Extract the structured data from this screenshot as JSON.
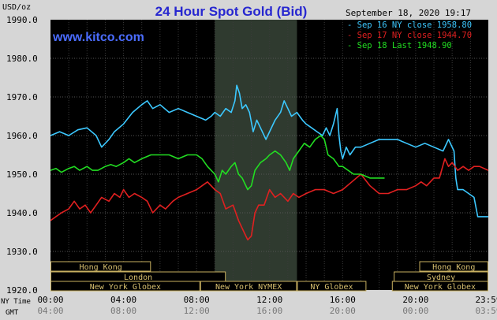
{
  "chart_data": {
    "type": "line",
    "title": "24 Hour Spot Gold (Bid)",
    "watermark": "www.kitco.com",
    "timestamp": "September 18, 2020 19:17",
    "ylabel": "USD/oz",
    "ylim": [
      1920,
      1990
    ],
    "yticks": [
      "1920.0",
      "1930.0",
      "1940.0",
      "1950.0",
      "1960.0",
      "1970.0",
      "1980.0",
      "1990.0"
    ],
    "x_row_labels": {
      "ny": "NY Time",
      "gmt": "GMT"
    },
    "xticks_ny": [
      "00:00",
      "04:00",
      "08:00",
      "12:00",
      "16:00",
      "20:00",
      "23:59"
    ],
    "xticks_gmt": [
      "04:00",
      "08:00",
      "12:00",
      "16:00",
      "20:00",
      "00:00",
      "03:59"
    ],
    "xtick_hours": [
      0,
      4,
      8,
      12,
      16,
      20,
      23.98
    ],
    "highlight_hours": [
      9,
      13.5
    ],
    "grid": true,
    "legend": [
      {
        "text": "Sep 16 NY close 1958.80",
        "color": "#3cc8ff"
      },
      {
        "text": "Sep 17 NY close 1944.70",
        "color": "#e02020"
      },
      {
        "text": "Sep 18 Last 1948.90",
        "color": "#22dd22"
      }
    ],
    "series": [
      {
        "color": "#3cc8ff",
        "points": [
          [
            0,
            1960
          ],
          [
            0.5,
            1961
          ],
          [
            1,
            1960
          ],
          [
            1.5,
            1961.5
          ],
          [
            2,
            1962
          ],
          [
            2.5,
            1960
          ],
          [
            2.8,
            1957
          ],
          [
            3.2,
            1959
          ],
          [
            3.5,
            1961
          ],
          [
            4,
            1963
          ],
          [
            4.5,
            1966
          ],
          [
            5,
            1968
          ],
          [
            5.3,
            1969
          ],
          [
            5.6,
            1967
          ],
          [
            6,
            1968
          ],
          [
            6.5,
            1966
          ],
          [
            7,
            1967
          ],
          [
            7.5,
            1966
          ],
          [
            8,
            1965
          ],
          [
            8.5,
            1964
          ],
          [
            8.8,
            1965
          ],
          [
            9,
            1966
          ],
          [
            9.3,
            1965
          ],
          [
            9.6,
            1967
          ],
          [
            9.9,
            1966
          ],
          [
            10.1,
            1969
          ],
          [
            10.2,
            1973
          ],
          [
            10.35,
            1971
          ],
          [
            10.5,
            1967
          ],
          [
            10.7,
            1968
          ],
          [
            10.9,
            1966
          ],
          [
            11.1,
            1961
          ],
          [
            11.3,
            1964
          ],
          [
            11.5,
            1962
          ],
          [
            11.8,
            1959
          ],
          [
            12,
            1961
          ],
          [
            12.3,
            1964
          ],
          [
            12.6,
            1966
          ],
          [
            12.8,
            1969
          ],
          [
            13,
            1967
          ],
          [
            13.2,
            1965
          ],
          [
            13.5,
            1966
          ],
          [
            13.8,
            1964
          ],
          [
            14,
            1963
          ],
          [
            14.3,
            1962
          ],
          [
            14.6,
            1961
          ],
          [
            14.9,
            1960
          ],
          [
            15.1,
            1962
          ],
          [
            15.3,
            1960
          ],
          [
            15.5,
            1963
          ],
          [
            15.7,
            1967
          ],
          [
            15.8,
            1960
          ],
          [
            15.9,
            1956
          ],
          [
            16,
            1954
          ],
          [
            16.2,
            1957
          ],
          [
            16.4,
            1955
          ],
          [
            16.7,
            1957
          ],
          [
            17,
            1957
          ],
          [
            17.5,
            1958
          ],
          [
            18,
            1959
          ],
          [
            18.5,
            1959
          ],
          [
            19,
            1959
          ],
          [
            19.5,
            1958
          ],
          [
            20,
            1957
          ],
          [
            20.5,
            1958
          ],
          [
            21,
            1957
          ],
          [
            21.5,
            1956
          ],
          [
            21.8,
            1959
          ],
          [
            22.1,
            1956
          ],
          [
            22.2,
            1949
          ],
          [
            22.3,
            1946
          ],
          [
            22.6,
            1946
          ],
          [
            22.9,
            1945
          ],
          [
            23.2,
            1944
          ],
          [
            23.4,
            1939
          ],
          [
            23.7,
            1939
          ],
          [
            23.98,
            1939
          ]
        ]
      },
      {
        "color": "#e02020",
        "points": [
          [
            0,
            1938
          ],
          [
            0.3,
            1939
          ],
          [
            0.6,
            1940
          ],
          [
            1,
            1941
          ],
          [
            1.3,
            1943
          ],
          [
            1.6,
            1941
          ],
          [
            1.9,
            1942
          ],
          [
            2.2,
            1940
          ],
          [
            2.5,
            1942
          ],
          [
            2.8,
            1944
          ],
          [
            3.2,
            1943
          ],
          [
            3.5,
            1945
          ],
          [
            3.8,
            1944
          ],
          [
            4,
            1946
          ],
          [
            4.3,
            1944
          ],
          [
            4.6,
            1945
          ],
          [
            5,
            1944
          ],
          [
            5.3,
            1943
          ],
          [
            5.6,
            1940
          ],
          [
            6,
            1942
          ],
          [
            6.3,
            1941
          ],
          [
            6.7,
            1943
          ],
          [
            7,
            1944
          ],
          [
            7.5,
            1945
          ],
          [
            8,
            1946
          ],
          [
            8.3,
            1947
          ],
          [
            8.6,
            1948
          ],
          [
            9,
            1946
          ],
          [
            9.3,
            1945
          ],
          [
            9.6,
            1941
          ],
          [
            10,
            1942
          ],
          [
            10.3,
            1938
          ],
          [
            10.6,
            1935
          ],
          [
            10.8,
            1933
          ],
          [
            11,
            1934
          ],
          [
            11.2,
            1940
          ],
          [
            11.4,
            1942
          ],
          [
            11.7,
            1942
          ],
          [
            12,
            1946
          ],
          [
            12.3,
            1944
          ],
          [
            12.6,
            1945
          ],
          [
            13,
            1943
          ],
          [
            13.3,
            1945
          ],
          [
            13.6,
            1944
          ],
          [
            14,
            1945
          ],
          [
            14.5,
            1946
          ],
          [
            15,
            1946
          ],
          [
            15.5,
            1945
          ],
          [
            16,
            1946
          ],
          [
            16.5,
            1948
          ],
          [
            17,
            1950
          ],
          [
            17.5,
            1947
          ],
          [
            18,
            1945
          ],
          [
            18.5,
            1945
          ],
          [
            19,
            1946
          ],
          [
            19.5,
            1946
          ],
          [
            20,
            1947
          ],
          [
            20.3,
            1948
          ],
          [
            20.6,
            1947
          ],
          [
            21,
            1949
          ],
          [
            21.3,
            1949
          ],
          [
            21.6,
            1954
          ],
          [
            21.8,
            1952
          ],
          [
            22,
            1953
          ],
          [
            22.3,
            1951
          ],
          [
            22.6,
            1952
          ],
          [
            22.9,
            1951
          ],
          [
            23.2,
            1952
          ],
          [
            23.5,
            1952
          ],
          [
            23.98,
            1951
          ]
        ]
      },
      {
        "color": "#22dd22",
        "points": [
          [
            0,
            1951
          ],
          [
            0.3,
            1951.5
          ],
          [
            0.6,
            1950.5
          ],
          [
            1,
            1951.5
          ],
          [
            1.3,
            1952
          ],
          [
            1.6,
            1951
          ],
          [
            2,
            1952
          ],
          [
            2.3,
            1951
          ],
          [
            2.6,
            1951
          ],
          [
            3,
            1952
          ],
          [
            3.3,
            1952.5
          ],
          [
            3.6,
            1952
          ],
          [
            4,
            1953
          ],
          [
            4.3,
            1954
          ],
          [
            4.6,
            1953
          ],
          [
            5,
            1954
          ],
          [
            5.5,
            1955
          ],
          [
            6,
            1955
          ],
          [
            6.5,
            1955
          ],
          [
            7,
            1954
          ],
          [
            7.5,
            1955
          ],
          [
            8,
            1955
          ],
          [
            8.3,
            1954
          ],
          [
            8.6,
            1952
          ],
          [
            9,
            1950
          ],
          [
            9.2,
            1948
          ],
          [
            9.4,
            1951
          ],
          [
            9.6,
            1950
          ],
          [
            9.9,
            1952
          ],
          [
            10.1,
            1953
          ],
          [
            10.3,
            1950
          ],
          [
            10.5,
            1949
          ],
          [
            10.8,
            1946
          ],
          [
            11,
            1947
          ],
          [
            11.2,
            1951
          ],
          [
            11.5,
            1953
          ],
          [
            11.8,
            1954
          ],
          [
            12,
            1955
          ],
          [
            12.3,
            1956
          ],
          [
            12.6,
            1955
          ],
          [
            12.9,
            1953
          ],
          [
            13.1,
            1951
          ],
          [
            13.3,
            1954
          ],
          [
            13.6,
            1956
          ],
          [
            13.9,
            1958
          ],
          [
            14.2,
            1957
          ],
          [
            14.5,
            1959
          ],
          [
            14.8,
            1960
          ],
          [
            15,
            1959
          ],
          [
            15.2,
            1955
          ],
          [
            15.5,
            1954
          ],
          [
            15.8,
            1952
          ],
          [
            16,
            1952
          ],
          [
            16.3,
            1951
          ],
          [
            16.6,
            1950
          ],
          [
            17,
            1950
          ],
          [
            17.5,
            1949
          ],
          [
            18,
            1949
          ],
          [
            18.3,
            1949
          ]
        ]
      }
    ]
  },
  "sessions": [
    {
      "label": "Hong Kong",
      "start": 0,
      "end": 5.5,
      "row": 0
    },
    {
      "label": "Hong Kong",
      "start": 20.2,
      "end": 23.98,
      "row": 0
    },
    {
      "label": "London",
      "start": 0,
      "end": 9.6,
      "row": 1
    },
    {
      "label": "Sydney",
      "start": 18.8,
      "end": 23.98,
      "row": 1
    },
    {
      "label": "New York Globex",
      "start": 0,
      "end": 8.2,
      "row": 2
    },
    {
      "label": "New York NYMEX",
      "start": 8.2,
      "end": 13.5,
      "row": 2
    },
    {
      "label": "NY Globex",
      "start": 13.5,
      "end": 17.3,
      "row": 2
    },
    {
      "label": "New York Globex",
      "start": 18.7,
      "end": 23.98,
      "row": 2
    }
  ]
}
